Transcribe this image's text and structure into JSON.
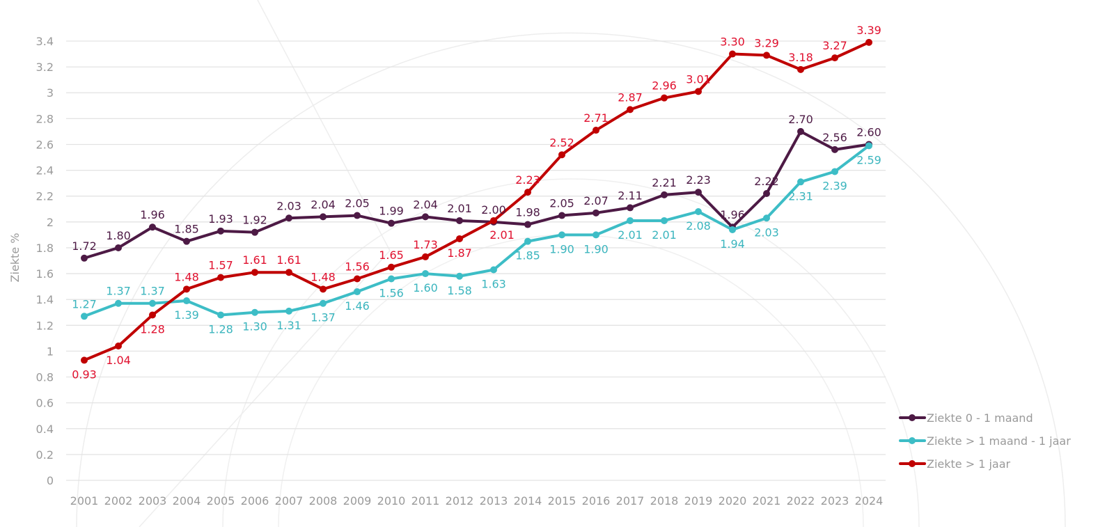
{
  "chart_data": {
    "type": "line",
    "title": "",
    "xlabel": "",
    "ylabel": "Ziekte %",
    "ylim": [
      0,
      3.4
    ],
    "yticks": [
      "0",
      "0.2",
      "0.4",
      "0.6",
      "0.8",
      "1",
      "1.2",
      "1.4",
      "1.6",
      "1.8",
      "2",
      "2.2",
      "2.4",
      "2.6",
      "2.8",
      "3",
      "3.2",
      "3.4"
    ],
    "grid": true,
    "legend_position": "right",
    "x": [
      "2001",
      "2002",
      "2003",
      "2004",
      "2005",
      "2006",
      "2007",
      "2008",
      "2009",
      "2010",
      "2011",
      "2012",
      "2013",
      "2014",
      "2015",
      "2016",
      "2017",
      "2018",
      "2019",
      "2020",
      "2021",
      "2022",
      "2023",
      "2024"
    ],
    "series": [
      {
        "name": "Ziekte 0 - 1 maand",
        "color": "#4d1a45",
        "label_color": "#4d1a45",
        "values": [
          1.72,
          1.8,
          1.96,
          1.85,
          1.93,
          1.92,
          2.03,
          2.04,
          2.05,
          1.99,
          2.04,
          2.01,
          2.0,
          1.98,
          2.05,
          2.07,
          2.11,
          2.21,
          2.23,
          1.96,
          2.22,
          2.7,
          2.56,
          2.6
        ]
      },
      {
        "name": "Ziekte > 1 maand - 1 jaar",
        "color": "#3dbdc6",
        "label_color": "#3bb5be",
        "values": [
          1.27,
          1.37,
          1.37,
          1.39,
          1.28,
          1.3,
          1.31,
          1.37,
          1.46,
          1.56,
          1.6,
          1.58,
          1.63,
          1.85,
          1.9,
          1.9,
          2.01,
          2.01,
          2.08,
          1.94,
          2.03,
          2.31,
          2.39,
          2.59
        ]
      },
      {
        "name": "Ziekte > 1 jaar",
        "color": "#c00000",
        "label_color": "#e0102e",
        "values": [
          0.93,
          1.04,
          1.28,
          1.48,
          1.57,
          1.61,
          1.61,
          1.48,
          1.56,
          1.65,
          1.73,
          1.87,
          2.01,
          2.23,
          2.52,
          2.71,
          2.87,
          2.96,
          3.01,
          3.3,
          3.29,
          3.18,
          3.27,
          3.39
        ]
      }
    ]
  }
}
